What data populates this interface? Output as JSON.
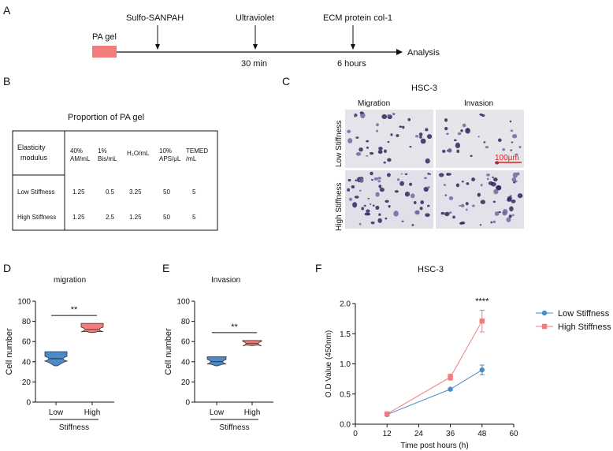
{
  "panels": {
    "a": "A",
    "b": "B",
    "c": "C",
    "d": "D",
    "e": "E",
    "f": "F"
  },
  "timeline": {
    "start_label": "PA gel",
    "steps": [
      "Sulfo-SANPAH",
      "Ultraviolet",
      "ECM protein col-1"
    ],
    "durations": [
      "30 min",
      "6 hours"
    ],
    "end_label": "Analysis",
    "colors": {
      "pa_gel": "#f07c7c"
    }
  },
  "table": {
    "title": "Proportion of PA gel",
    "header": [
      "Elasticity modulus",
      "40% AM/mL",
      "1% Bis/mL",
      "H₂O/mL",
      "10% APS/μL",
      "TEMED /mL"
    ],
    "rows": [
      [
        "Low Stiffness",
        "1.25",
        "0.5",
        "3.25",
        "50",
        "5"
      ],
      [
        "High Stiffness",
        "1.25",
        "2.5",
        "1.25",
        "50",
        "5"
      ]
    ]
  },
  "micrographs": {
    "title": "HSC-3",
    "col_labels": [
      "Migration",
      "Invasion"
    ],
    "row_labels": [
      "Low Stiffness",
      "High Stiffness"
    ],
    "scale_bar": "100μm"
  },
  "colors": {
    "low": "#4a8ccb",
    "high": "#f07c7c",
    "scale_bar": "#e02020"
  },
  "chart_data": [
    {
      "type": "violin",
      "title": "migration",
      "ylabel": "Cell number",
      "xlabel": "Stiffness",
      "categories": [
        "Low",
        "High"
      ],
      "ylim": [
        0,
        100
      ],
      "yticks": [
        0,
        20,
        40,
        60,
        80,
        100
      ],
      "series": [
        {
          "category": "Low",
          "min": 36,
          "max": 50,
          "median": 43
        },
        {
          "category": "High",
          "min": 69,
          "max": 78,
          "median": 72
        }
      ],
      "annotation": "**"
    },
    {
      "type": "violin",
      "title": "Invasion",
      "ylabel": "Cell number",
      "xlabel": "Stiffness",
      "categories": [
        "Low",
        "High"
      ],
      "ylim": [
        0,
        100
      ],
      "yticks": [
        0,
        20,
        40,
        60,
        80,
        100
      ],
      "series": [
        {
          "category": "Low",
          "min": 36,
          "max": 45,
          "median": 40
        },
        {
          "category": "High",
          "min": 56,
          "max": 61,
          "median": 58
        }
      ],
      "annotation": "**"
    },
    {
      "type": "line",
      "title": "HSC-3",
      "xlabel": "Time post hours (h)",
      "ylabel": "O.D Value (450nm)",
      "xlim": [
        0,
        60
      ],
      "ylim": [
        0,
        2.0
      ],
      "xticks": [
        0,
        12,
        24,
        36,
        48,
        60
      ],
      "yticks": [
        "0.0",
        "0.5",
        "1.0",
        "1.5",
        "2.0"
      ],
      "x": [
        12,
        36,
        48
      ],
      "series": [
        {
          "name": "Low Stiffness",
          "values": [
            0.16,
            0.58,
            0.9
          ],
          "errors": [
            0.02,
            0.02,
            0.08
          ]
        },
        {
          "name": "High Stiffness",
          "values": [
            0.17,
            0.78,
            1.71
          ],
          "errors": [
            0.02,
            0.05,
            0.18
          ]
        }
      ],
      "annotation": "****",
      "legend": "right"
    }
  ]
}
